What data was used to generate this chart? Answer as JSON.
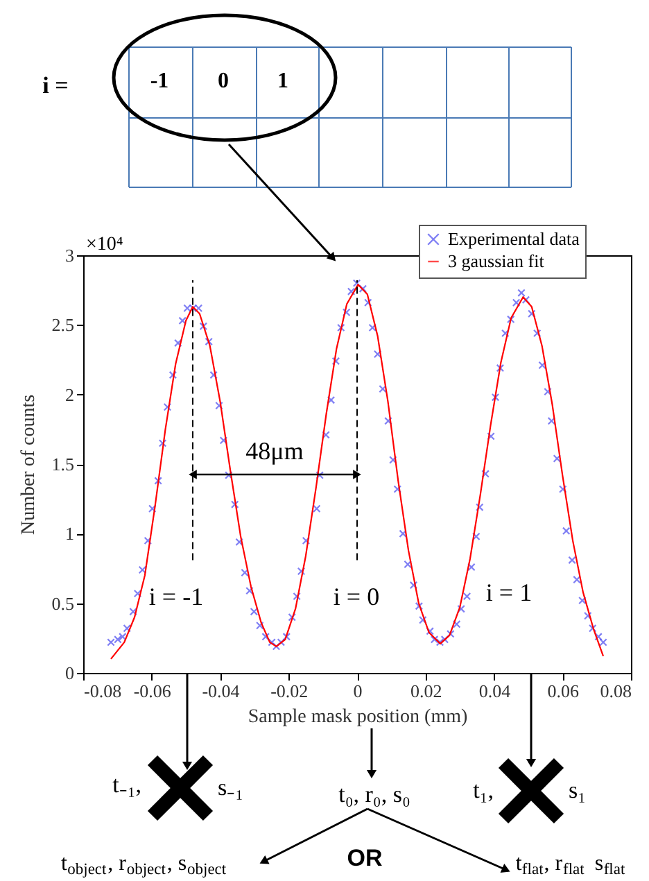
{
  "chart_data": {
    "type": "scatter",
    "xlabel": "Sample mask position (mm)",
    "ylabel": "Number of counts",
    "xlim": [
      -0.08,
      0.08
    ],
    "xticks": [
      -0.08,
      -0.06,
      -0.04,
      -0.02,
      0,
      0.02,
      0.04,
      0.06,
      0.08
    ],
    "ylim": [
      0,
      3
    ],
    "yticks": [
      0,
      0.5,
      1,
      1.5,
      2,
      2.5,
      3
    ],
    "grid": false,
    "legend": "top right",
    "series": [
      {
        "name": "Experimental data",
        "marker": "cross",
        "color": "#4a4af0",
        "x": [
          -0.0719,
          -0.0699,
          -0.0685,
          -0.0672,
          -0.0654,
          -0.0641,
          -0.0627,
          -0.0611,
          -0.0598,
          -0.0581,
          -0.0568,
          -0.0554,
          -0.0538,
          -0.0523,
          -0.051,
          -0.0496,
          -0.0479,
          -0.0463,
          -0.0449,
          -0.0433,
          -0.0419,
          -0.0403,
          -0.039,
          -0.0375,
          -0.0357,
          -0.0344,
          -0.0328,
          -0.0314,
          -0.0301,
          -0.0284,
          -0.0267,
          -0.0249,
          -0.0236,
          -0.0222,
          -0.0206,
          -0.019,
          -0.0176,
          -0.0163,
          -0.0149,
          -0.0118,
          -0.0109,
          -0.0091,
          -0.0076,
          -0.0062,
          -0.0047,
          -0.0031,
          -0.0017,
          -0.0001,
          0.0017,
          0.0032,
          0.0045,
          0.006,
          0.0075,
          0.0091,
          0.0105,
          0.0118,
          0.0134,
          0.0148,
          0.0165,
          0.0181,
          0.0192,
          0.0213,
          0.0226,
          0.0242,
          0.0256,
          0.0273,
          0.0291,
          0.0304,
          0.0321,
          0.0334,
          0.0348,
          0.0358,
          0.0375,
          0.0391,
          0.0404,
          0.0418,
          0.0433,
          0.0449,
          0.0465,
          0.048,
          0.0493,
          0.051,
          0.0526,
          0.0541,
          0.0557,
          0.0568,
          0.0584,
          0.0601,
          0.0611,
          0.0628,
          0.0642,
          0.0658,
          0.0674,
          0.0688,
          0.0705,
          0.0719
        ],
        "values": [
          0.22,
          0.24,
          0.26,
          0.32,
          0.44,
          0.57,
          0.74,
          0.95,
          1.18,
          1.38,
          1.65,
          1.91,
          2.14,
          2.37,
          2.53,
          2.62,
          2.62,
          2.62,
          2.49,
          2.38,
          2.14,
          1.92,
          1.67,
          1.42,
          1.21,
          0.94,
          0.72,
          0.59,
          0.44,
          0.34,
          0.26,
          0.22,
          0.19,
          0.22,
          0.26,
          0.4,
          0.55,
          0.73,
          0.95,
          1.18,
          1.42,
          1.71,
          1.96,
          2.24,
          2.48,
          2.59,
          2.74,
          2.8,
          2.76,
          2.66,
          2.48,
          2.29,
          2.04,
          1.81,
          1.53,
          1.32,
          1.0,
          0.78,
          0.63,
          0.48,
          0.38,
          0.3,
          0.24,
          0.22,
          0.24,
          0.28,
          0.35,
          0.46,
          0.55,
          0.76,
          0.98,
          1.19,
          1.43,
          1.7,
          1.98,
          2.19,
          2.44,
          2.54,
          2.66,
          2.73,
          2.68,
          2.58,
          2.44,
          2.21,
          2.02,
          1.81,
          1.54,
          1.32,
          1.02,
          0.81,
          0.67,
          0.52,
          0.41,
          0.32,
          0.26,
          0.22
        ]
      },
      {
        "name": "3 gaussian fit",
        "type": "line",
        "line_style": "solid",
        "color": "#ff0000",
        "x": [
          -0.0719,
          -0.068,
          -0.065,
          -0.062,
          -0.059,
          -0.056,
          -0.053,
          -0.05,
          -0.048,
          -0.046,
          -0.043,
          -0.04,
          -0.037,
          -0.034,
          -0.031,
          -0.028,
          -0.0255,
          -0.0236,
          -0.021,
          -0.018,
          -0.015,
          -0.012,
          -0.009,
          -0.006,
          -0.003,
          0.0003,
          0.003,
          0.006,
          0.009,
          0.012,
          0.015,
          0.018,
          0.021,
          0.0243,
          0.027,
          0.03,
          0.033,
          0.036,
          0.039,
          0.042,
          0.045,
          0.0485,
          0.051,
          0.054,
          0.057,
          0.06,
          0.063,
          0.066,
          0.069,
          0.0719
        ],
        "values": [
          0.1,
          0.22,
          0.4,
          0.7,
          1.2,
          1.75,
          2.22,
          2.53,
          2.63,
          2.58,
          2.35,
          1.95,
          1.45,
          0.98,
          0.62,
          0.36,
          0.22,
          0.19,
          0.24,
          0.46,
          0.84,
          1.33,
          1.86,
          2.33,
          2.65,
          2.79,
          2.72,
          2.42,
          1.95,
          1.38,
          0.88,
          0.5,
          0.29,
          0.21,
          0.27,
          0.47,
          0.82,
          1.28,
          1.78,
          2.23,
          2.55,
          2.7,
          2.63,
          2.35,
          1.93,
          1.42,
          0.95,
          0.58,
          0.32,
          0.12
        ]
      }
    ],
    "ref_lines": [
      {
        "axis": "x",
        "value": -0.048,
        "line_style": "dashed",
        "color": "#000000"
      },
      {
        "axis": "x",
        "value": 0,
        "line_style": "dashed",
        "color": "#000000"
      }
    ],
    "annotations": [
      "48μm",
      "i = -1",
      "i = 0",
      "i = 1",
      "×10⁴",
      "i =",
      "-1",
      "0",
      "1",
      "t₋₁,",
      "s₋₁",
      "t₀, r₀, s₀",
      "t₁,",
      "s₁",
      "t$_{object}$, r$_{object}$, s$_{object}$",
      "OR",
      "t$_{flat}$, r$_{flat}$ s$_{flat}$"
    ]
  }
}
